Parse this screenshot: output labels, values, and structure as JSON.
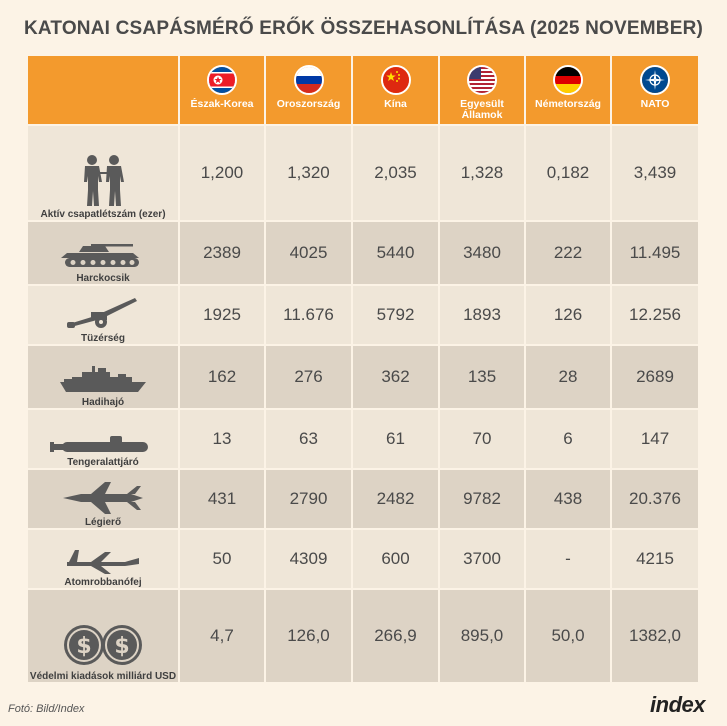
{
  "title": "KATONAI CSAPÁSMÉRŐ ERŐK ÖSSZEHASONLÍTÁSA (2025 NOVEMBER)",
  "countries": [
    {
      "name": "Észak-Korea",
      "flag": "north-korea-flag"
    },
    {
      "name": "Oroszország",
      "flag": "russia-flag"
    },
    {
      "name": "Kína",
      "flag": "china-flag"
    },
    {
      "name": "Egyesült Államok",
      "flag": "usa-flag"
    },
    {
      "name": "Németország",
      "flag": "germany-flag"
    },
    {
      "name": "NATO",
      "flag": "nato-flag"
    }
  ],
  "rows": [
    {
      "label": "Aktív csapatlétszám (ezer)",
      "icon": "soldiers-icon",
      "values": [
        "1,200",
        "1,320",
        "2,035",
        "1,328",
        "0,182",
        "3,439"
      ]
    },
    {
      "label": "Harckocsik",
      "icon": "tank-icon",
      "values": [
        "2389",
        "4025",
        "5440",
        "3480",
        "222",
        "11.495"
      ]
    },
    {
      "label": "Tüzérség",
      "icon": "artillery-icon",
      "values": [
        "1925",
        "11.676",
        "5792",
        "1893",
        "126",
        "12.256"
      ]
    },
    {
      "label": "Hadihajó",
      "icon": "warship-icon",
      "values": [
        "162",
        "276",
        "362",
        "135",
        "28",
        "2689"
      ]
    },
    {
      "label": "Tengeralattjáró",
      "icon": "submarine-icon",
      "values": [
        "13",
        "63",
        "61",
        "70",
        "6",
        "147"
      ]
    },
    {
      "label": "Légierő",
      "icon": "fighter-jet-icon",
      "values": [
        "431",
        "2790",
        "2482",
        "9782",
        "438",
        "20.376"
      ]
    },
    {
      "label": "Atomrobbanófej",
      "icon": "nuclear-jet-icon",
      "values": [
        "50",
        "4309",
        "600",
        "3700",
        "-",
        "4215"
      ]
    },
    {
      "label": "Védelmi kiadások milliárd USD",
      "icon": "dollar-coins-icon",
      "values": [
        "4,7",
        "126,0",
        "266,9",
        "895,0",
        "50,0",
        "1382,0"
      ]
    }
  ],
  "credit": "Fotó: Bild/Index",
  "logo": "index",
  "colors": {
    "header": "#f39a2d",
    "background": "#fcf3e6",
    "rowLight": "#efe6d8",
    "rowDark": "#ddd3c5",
    "icon": "#5a5a5a"
  }
}
